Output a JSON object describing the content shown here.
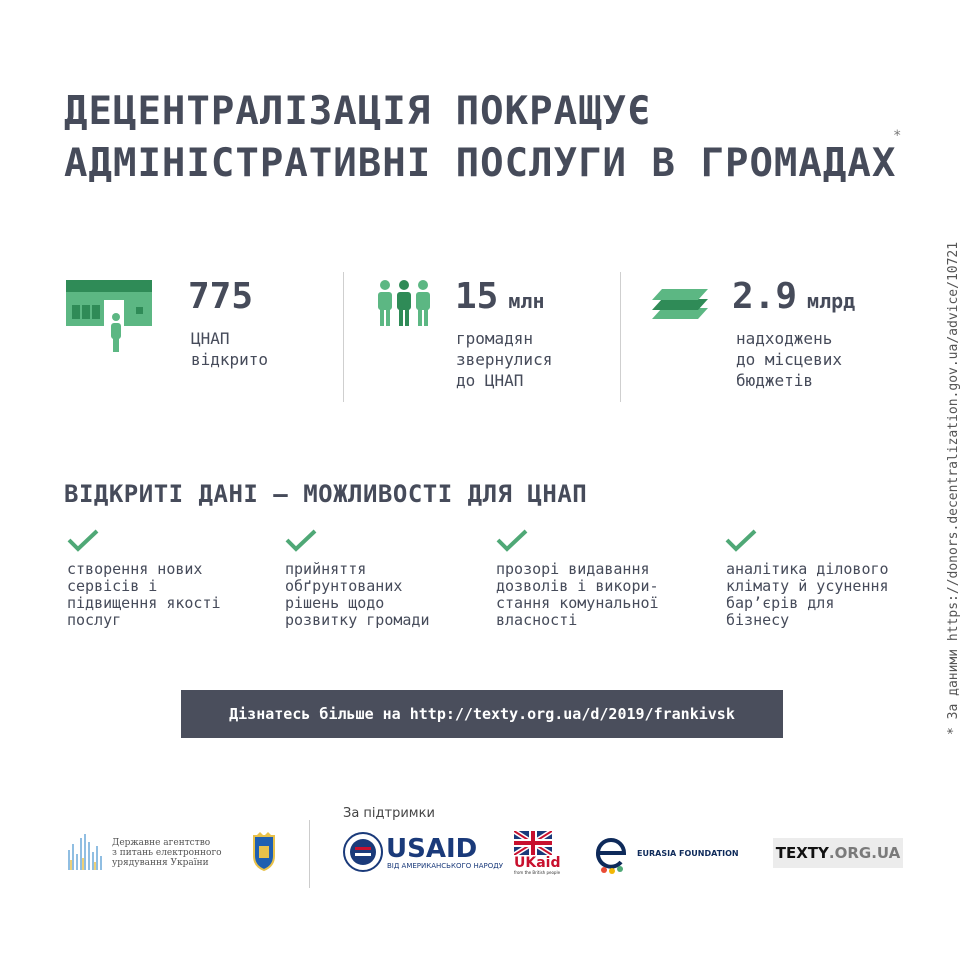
{
  "title": {
    "line1": "ДЕЦЕНТРАЛІЗАЦІЯ ПОКРАЩУЄ",
    "line2": "АДМІНІСТРАТИВНІ ПОСЛУГИ В ГРОМАДАХ",
    "asterisk": "*"
  },
  "colors": {
    "accent": "#4fa876",
    "dark": "#4a4e5c",
    "text": "#464b5a"
  },
  "stats": [
    {
      "icon": "office-building-icon",
      "number": "775",
      "unit": "",
      "desc": "ЦНАП\nвідкрито"
    },
    {
      "icon": "people-group-icon",
      "number": "15",
      "unit": "млн",
      "desc": "громадян\nзвернулися\nдо ЦНАП"
    },
    {
      "icon": "money-stack-icon",
      "number": "2.9",
      "unit": "млрд",
      "desc": "надходжень\nдо місцевих\nбюджетів"
    }
  ],
  "section": {
    "title": "ВІДКРИТІ ДАНІ — МОЖЛИВОСТІ ДЛЯ ЦНАП",
    "items": [
      "створення нових\nсервісів і\nпідвищення якості\nпослуг",
      "прийняття\nобґрунтованих\nрішень щодо\nрозвитку громади",
      "прозорі видавання\nдозволів і викори-\nстання комунальної\nвласності",
      "аналітика ділового\nклімату й усунення\nбар’єрів для\nбізнесу"
    ]
  },
  "cta": {
    "label": "Дізнатесь більше на http://texty.org.ua/d/2019/frankivsk"
  },
  "side_note": "* За даними https://donors.decentralization.gov.ua/advice/10721",
  "footer": {
    "support_label": "За підтримки",
    "agency_name": "Державне агентство\nз питань електронного\nурядування України",
    "usaid": "USAID",
    "usaid_sub": "ВІД АМЕРИКАНСЬКОГО НАРОДУ",
    "ukaid": "UKaid",
    "ukaid_sub": "from the British people",
    "eurasia": "EURASIA FOUNDATION",
    "texty_main": "TEXTY",
    "texty_org": ".ORG.UA"
  }
}
